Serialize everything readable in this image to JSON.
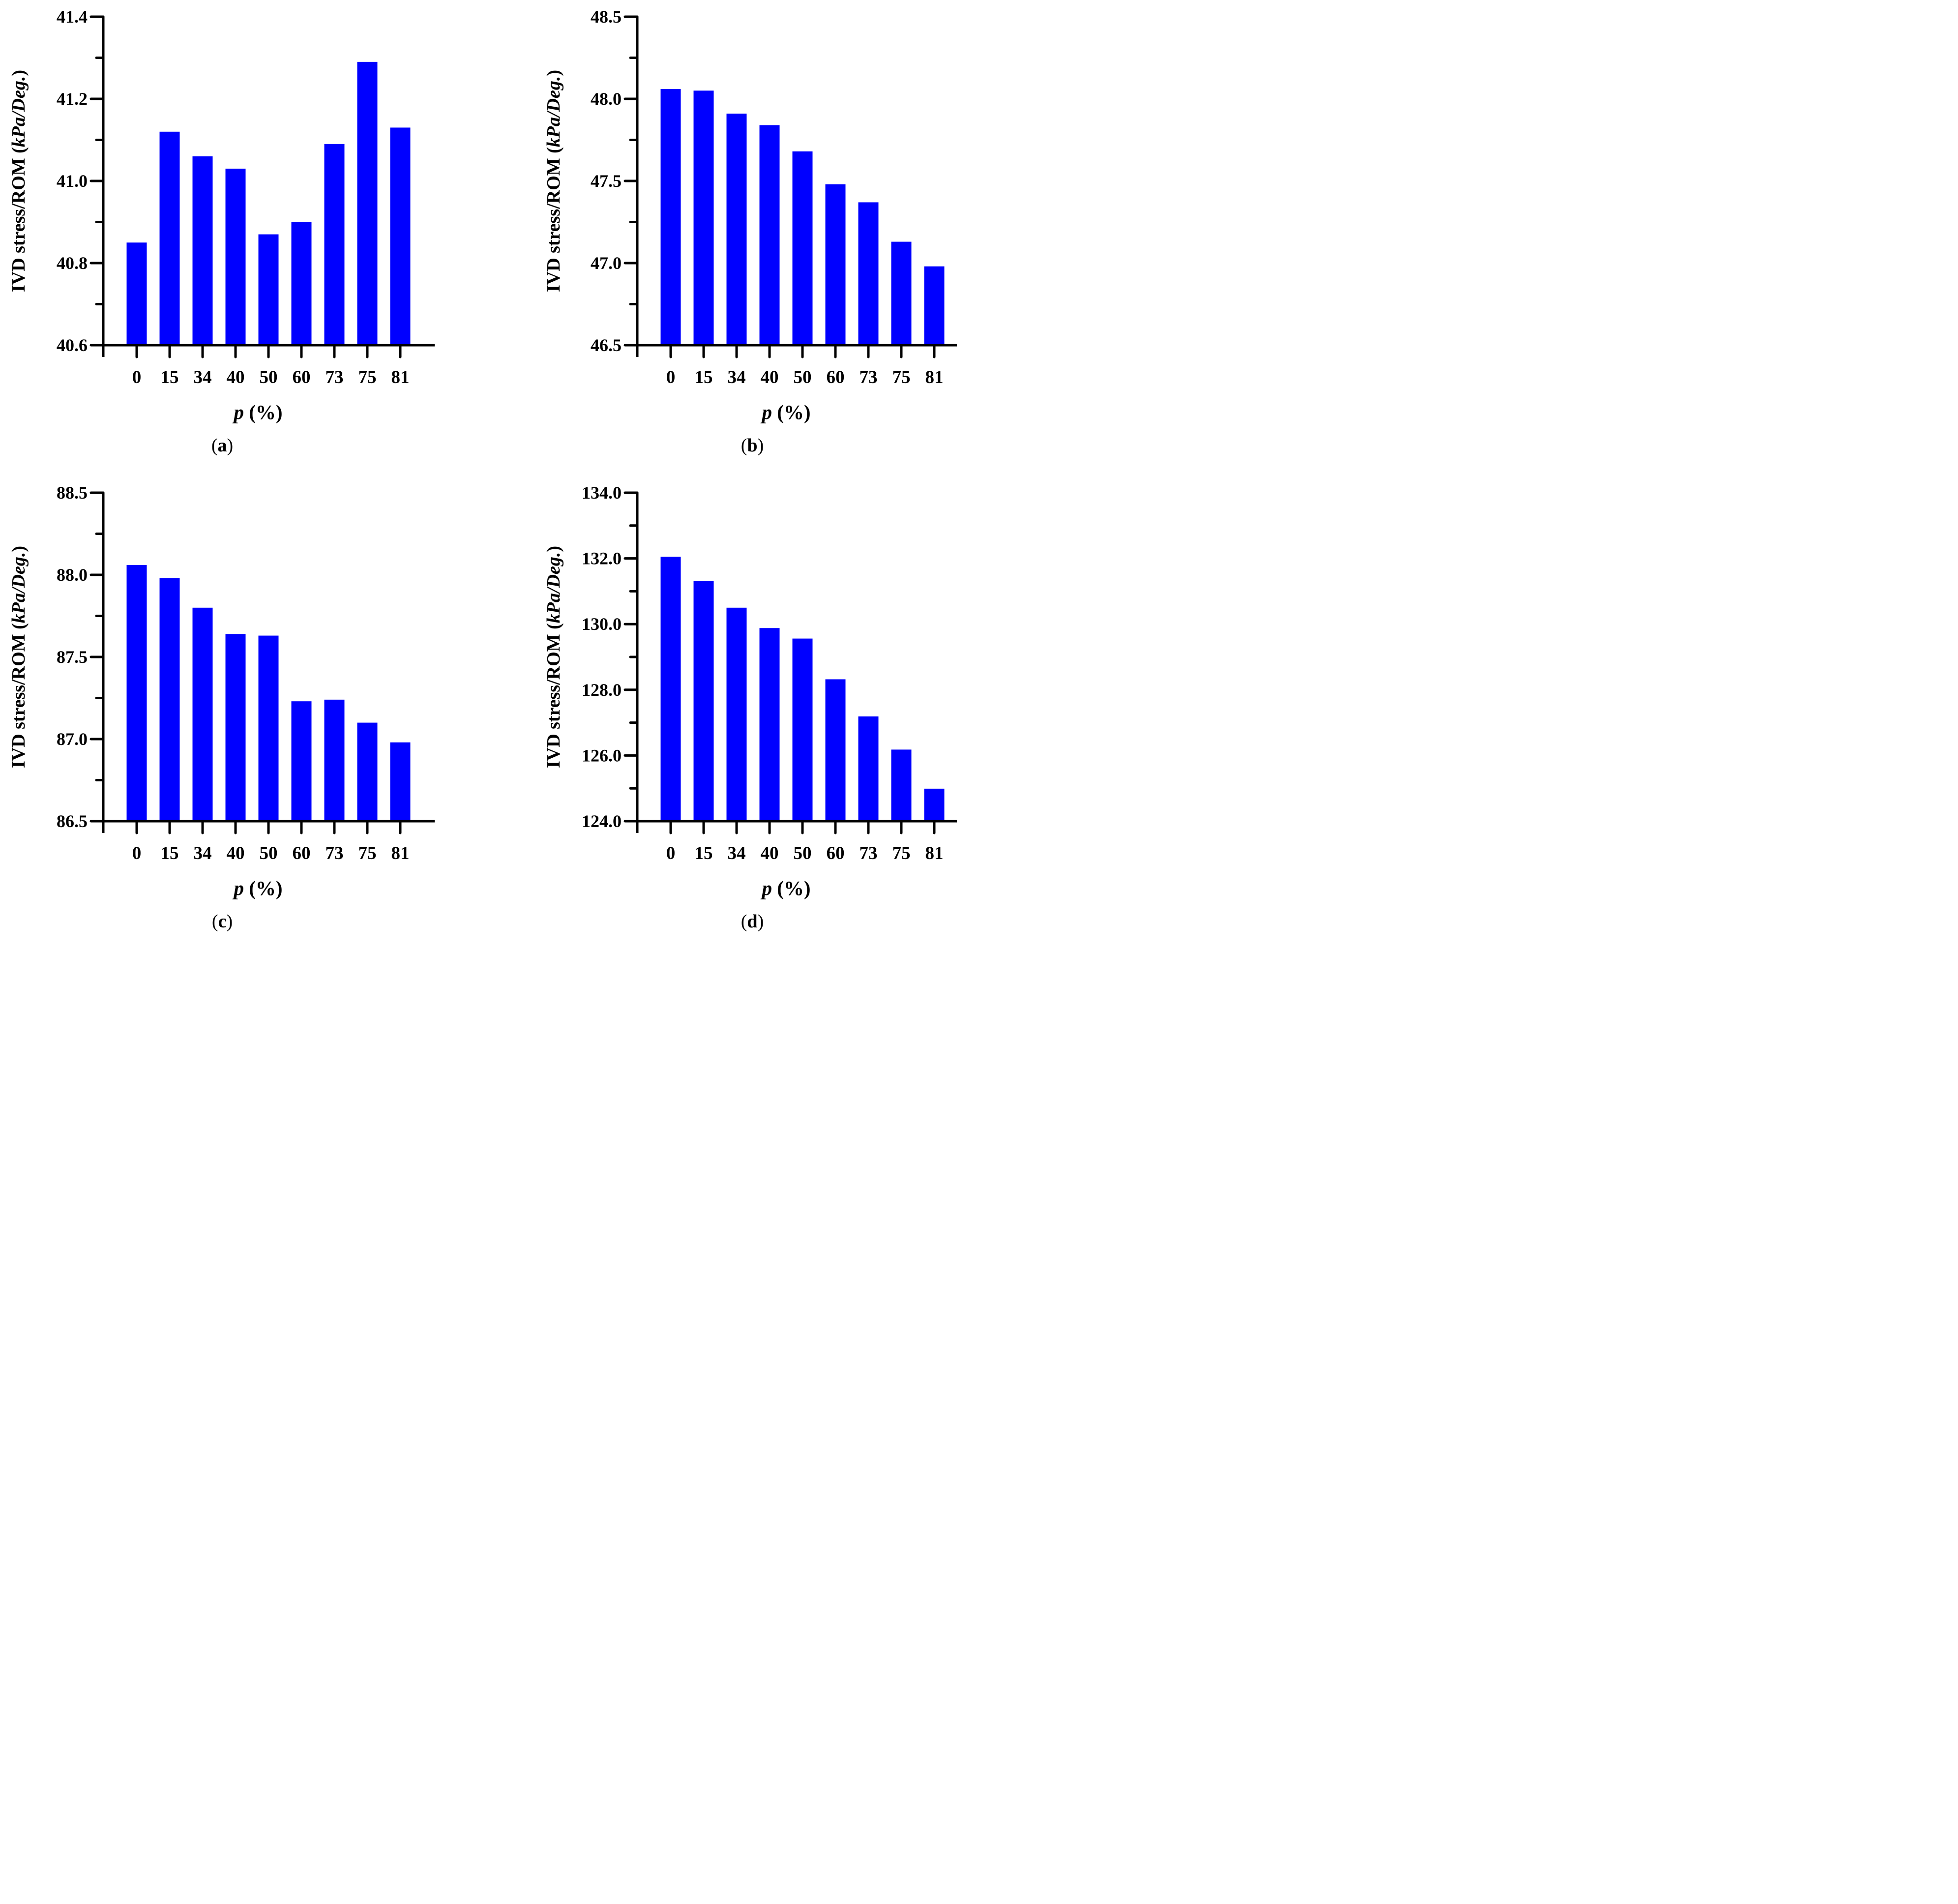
{
  "figure": {
    "background": "#FFFFFF",
    "axis_color": "#000000",
    "bar_color": "#0000FF"
  },
  "chart_data": [
    {
      "panel": "a",
      "type": "bar",
      "caption_open": "(",
      "caption_letter": "a",
      "caption_close": ")",
      "xlabel": "p (%)",
      "ylabel": "IVD stress/ROM (kPa/Deg.)",
      "xlabel_parts": {
        "var": "p",
        "rest": " (%)"
      },
      "ylabel_parts": {
        "pre": "IVD stress/ROM (",
        "unit": "kPa/Deg.",
        "post": ")"
      },
      "categories": [
        "0",
        "15",
        "34",
        "40",
        "50",
        "60",
        "73",
        "75",
        "81"
      ],
      "values": [
        40.85,
        41.12,
        41.06,
        41.03,
        40.87,
        40.9,
        41.09,
        41.29,
        41.13
      ],
      "ylim": [
        40.6,
        41.4
      ],
      "ytick_labels": [
        "40.6",
        "40.8",
        "41.0",
        "41.2",
        "41.4"
      ],
      "yminor_values": [
        40.7,
        40.9,
        41.1,
        41.3
      ],
      "bar_color": "#0000FF",
      "grid": false,
      "legend": null
    },
    {
      "panel": "b",
      "type": "bar",
      "caption_open": "(",
      "caption_letter": "b",
      "caption_close": ")",
      "xlabel": "p (%)",
      "ylabel": "IVD stress/ROM (kPa/Deg.)",
      "xlabel_parts": {
        "var": "p",
        "rest": " (%)"
      },
      "ylabel_parts": {
        "pre": "IVD stress/ROM (",
        "unit": "kPa/Deg.",
        "post": ")"
      },
      "categories": [
        "0",
        "15",
        "34",
        "40",
        "50",
        "60",
        "73",
        "75",
        "81"
      ],
      "values": [
        48.06,
        48.05,
        47.91,
        47.84,
        47.68,
        47.48,
        47.37,
        47.13,
        46.98
      ],
      "ylim": [
        46.5,
        48.5
      ],
      "ytick_labels": [
        "46.5",
        "47.0",
        "47.5",
        "48.0",
        "48.5"
      ],
      "yminor_values": [
        46.75,
        47.25,
        47.75,
        48.25
      ],
      "bar_color": "#0000FF",
      "grid": false,
      "legend": null
    },
    {
      "panel": "c",
      "type": "bar",
      "caption_open": "(",
      "caption_letter": "c",
      "caption_close": ")",
      "xlabel": "p (%)",
      "ylabel": "IVD stress/ROM (kPa/Deg.)",
      "xlabel_parts": {
        "var": "p",
        "rest": " (%)"
      },
      "ylabel_parts": {
        "pre": "IVD stress/ROM (",
        "unit": "kPa/Deg.",
        "post": ")"
      },
      "categories": [
        "0",
        "15",
        "34",
        "40",
        "50",
        "60",
        "73",
        "75",
        "81"
      ],
      "values": [
        88.06,
        87.98,
        87.8,
        87.64,
        87.63,
        87.23,
        87.24,
        87.1,
        86.98
      ],
      "ylim": [
        86.5,
        88.5
      ],
      "ytick_labels": [
        "86.5",
        "87.0",
        "87.5",
        "88.0",
        "88.5"
      ],
      "yminor_values": [
        86.75,
        87.25,
        87.75,
        88.25
      ],
      "bar_color": "#0000FF",
      "grid": false,
      "legend": null
    },
    {
      "panel": "d",
      "type": "bar",
      "caption_open": "(",
      "caption_letter": "d",
      "caption_close": ")",
      "xlabel": "p (%)",
      "ylabel": "IVD stress/ROM (kPa/Deg.)",
      "xlabel_parts": {
        "var": "p",
        "rest": " (%)"
      },
      "ylabel_parts": {
        "pre": "IVD stress/ROM (",
        "unit": "kPa/Deg.",
        "post": ")"
      },
      "categories": [
        "0",
        "15",
        "34",
        "40",
        "50",
        "60",
        "73",
        "75",
        "81"
      ],
      "values": [
        132.05,
        131.31,
        130.5,
        129.88,
        129.56,
        128.32,
        127.19,
        126.18,
        124.99
      ],
      "ylim": [
        124.0,
        134.0
      ],
      "ytick_labels": [
        "124.0",
        "126.0",
        "128.0",
        "130.0",
        "132.0",
        "134.0"
      ],
      "yminor_values": [
        125.0,
        127.0,
        129.0,
        131.0,
        133.0
      ],
      "bar_color": "#0000FF",
      "grid": false,
      "legend": null
    }
  ]
}
